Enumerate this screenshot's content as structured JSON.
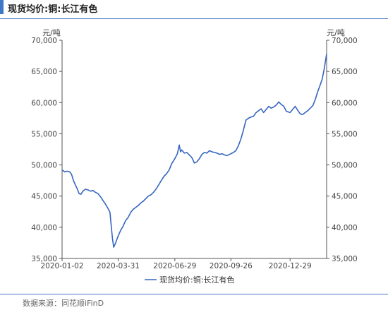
{
  "title": "现货均价:铜:长江有色",
  "source": "数据来源：同花顺iFinD",
  "chart_data": {
    "type": "line",
    "ylabel_left": "元/吨",
    "ylabel_right": "元/吨",
    "ylim": [
      35000,
      70000
    ],
    "y_ticks": [
      "35,000",
      "40,000",
      "45,000",
      "50,000",
      "55,000",
      "60,000",
      "65,000",
      "70,000"
    ],
    "x_ticks": [
      "2020-01-02",
      "2020-03-31",
      "2020-06-29",
      "2020-09-26",
      "2020-12-29"
    ],
    "legend_position": "bottom",
    "grid": false,
    "series": [
      {
        "name": "现货均价:铜:长江有色",
        "color": "#3566bf",
        "x": [
          "2020-01-02",
          "2020-01-06",
          "2020-01-10",
          "2020-01-14",
          "2020-01-17",
          "2020-01-20",
          "2020-01-23",
          "2020-01-26",
          "2020-01-29",
          "2020-02-01",
          "2020-02-04",
          "2020-02-08",
          "2020-02-12",
          "2020-02-16",
          "2020-02-20",
          "2020-02-24",
          "2020-02-28",
          "2020-03-03",
          "2020-03-07",
          "2020-03-11",
          "2020-03-15",
          "2020-03-18",
          "2020-03-20",
          "2020-03-22",
          "2020-03-24",
          "2020-03-27",
          "2020-03-31",
          "2020-04-04",
          "2020-04-08",
          "2020-04-12",
          "2020-04-16",
          "2020-04-20",
          "2020-04-24",
          "2020-04-28",
          "2020-05-02",
          "2020-05-06",
          "2020-05-10",
          "2020-05-14",
          "2020-05-18",
          "2020-05-22",
          "2020-05-26",
          "2020-05-30",
          "2020-06-04",
          "2020-06-08",
          "2020-06-12",
          "2020-06-16",
          "2020-06-20",
          "2020-06-24",
          "2020-06-29",
          "2020-07-03",
          "2020-07-06",
          "2020-07-08",
          "2020-07-10",
          "2020-07-14",
          "2020-07-18",
          "2020-07-22",
          "2020-07-26",
          "2020-07-30",
          "2020-08-03",
          "2020-08-07",
          "2020-08-11",
          "2020-08-15",
          "2020-08-19",
          "2020-08-23",
          "2020-08-27",
          "2020-08-31",
          "2020-09-04",
          "2020-09-08",
          "2020-09-12",
          "2020-09-16",
          "2020-09-20",
          "2020-09-26",
          "2020-09-30",
          "2020-10-04",
          "2020-10-08",
          "2020-10-12",
          "2020-10-16",
          "2020-10-20",
          "2020-10-24",
          "2020-10-28",
          "2020-11-01",
          "2020-11-05",
          "2020-11-09",
          "2020-11-13",
          "2020-11-17",
          "2020-11-21",
          "2020-11-25",
          "2020-11-29",
          "2020-12-03",
          "2020-12-07",
          "2020-12-11",
          "2020-12-15",
          "2020-12-19",
          "2020-12-23",
          "2020-12-29",
          "2021-01-02",
          "2021-01-06",
          "2021-01-10",
          "2021-01-14",
          "2021-01-18",
          "2021-01-22",
          "2021-01-26",
          "2021-01-30",
          "2021-02-03",
          "2021-02-07",
          "2021-02-11",
          "2021-02-15",
          "2021-02-18",
          "2021-02-21",
          "2021-02-24",
          "2021-02-25"
        ],
        "y": [
          49200,
          48900,
          49000,
          48900,
          48500,
          47500,
          46800,
          46200,
          45400,
          45300,
          45800,
          46100,
          46000,
          45800,
          45900,
          45600,
          45400,
          44900,
          44300,
          43700,
          43000,
          42400,
          40300,
          38200,
          36800,
          37500,
          38600,
          39500,
          40200,
          41100,
          41600,
          42400,
          42900,
          43200,
          43500,
          43900,
          44200,
          44600,
          45000,
          45200,
          45600,
          46100,
          46900,
          47600,
          48200,
          48600,
          49200,
          50200,
          51000,
          51800,
          53200,
          52100,
          52400,
          51900,
          52000,
          51600,
          51200,
          50300,
          50500,
          51000,
          51700,
          52000,
          51900,
          52300,
          52100,
          52000,
          51900,
          51700,
          51800,
          51600,
          51500,
          51800,
          52000,
          52300,
          53100,
          54200,
          55600,
          57200,
          57500,
          57700,
          57800,
          58400,
          58700,
          59000,
          58400,
          58900,
          59400,
          59100,
          59300,
          59600,
          60100,
          59700,
          59400,
          58600,
          58400,
          58900,
          59400,
          58800,
          58200,
          58100,
          58400,
          58700,
          59100,
          59500,
          60500,
          61800,
          62900,
          63800,
          65300,
          67200,
          67800
        ]
      }
    ]
  }
}
